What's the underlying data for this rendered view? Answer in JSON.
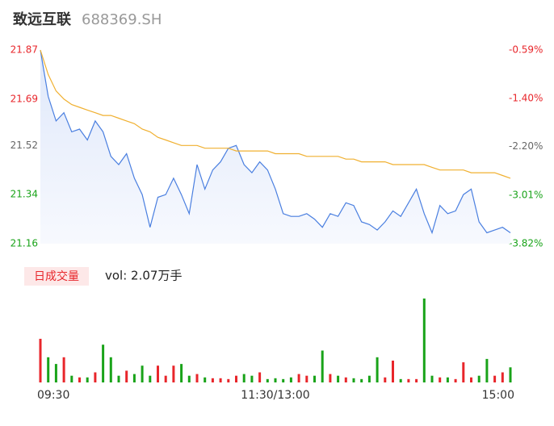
{
  "chart_data": [
    {
      "type": "line",
      "title": "致远互联",
      "subtitle": "688369.SH",
      "x": [
        0,
        4,
        8,
        12,
        16,
        20,
        24,
        28,
        32,
        36,
        40,
        44,
        48,
        52,
        56,
        60,
        64,
        68,
        72,
        76,
        80,
        84,
        88,
        92,
        96,
        100,
        104,
        108,
        112,
        116,
        120,
        124,
        128,
        132,
        136,
        140,
        144,
        148,
        152,
        156,
        160,
        164,
        168,
        172,
        176,
        180,
        184,
        188,
        192,
        196,
        200,
        204,
        208,
        212,
        216,
        220,
        224,
        228,
        232,
        236,
        240
      ],
      "xlim": [
        0,
        240
      ],
      "ylim": [
        21.16,
        21.87
      ],
      "yticks": [
        21.16,
        21.34,
        21.52,
        21.69,
        21.87
      ],
      "ytick_colors": [
        "#19a319",
        "#19a319",
        "#666666",
        "#e8262b",
        "#e8262b"
      ],
      "y2lim": [
        -3.82,
        -0.59
      ],
      "y2ticks": [
        {
          "value": -3.82,
          "label": "-3.82%"
        },
        {
          "value": -3.01,
          "label": "-3.01%"
        },
        {
          "value": -2.2,
          "label": "-2.20%"
        },
        {
          "value": -1.4,
          "label": "-1.40%"
        },
        {
          "value": -0.59,
          "label": "-0.59%"
        }
      ],
      "series": [
        {
          "color": "#4a7fe0",
          "fill": true,
          "values": [
            21.87,
            21.7,
            21.61,
            21.64,
            21.57,
            21.58,
            21.54,
            21.61,
            21.57,
            21.48,
            21.45,
            21.49,
            21.4,
            21.34,
            21.22,
            21.33,
            21.34,
            21.4,
            21.34,
            21.27,
            21.45,
            21.36,
            21.43,
            21.46,
            21.51,
            21.52,
            21.45,
            21.42,
            21.46,
            21.43,
            21.36,
            21.27,
            21.26,
            21.26,
            21.27,
            21.25,
            21.22,
            21.27,
            21.26,
            21.31,
            21.3,
            21.24,
            21.23,
            21.21,
            21.24,
            21.28,
            21.26,
            21.31,
            21.36,
            21.27,
            21.2,
            21.3,
            21.27,
            21.28,
            21.34,
            21.36,
            21.24,
            21.2,
            21.21,
            21.22,
            21.2
          ]
        },
        {
          "color": "#f0b030",
          "fill": false,
          "values": [
            21.87,
            21.78,
            21.72,
            21.69,
            21.67,
            21.66,
            21.65,
            21.64,
            21.63,
            21.63,
            21.62,
            21.61,
            21.6,
            21.58,
            21.57,
            21.55,
            21.54,
            21.53,
            21.52,
            21.52,
            21.52,
            21.51,
            21.51,
            21.51,
            21.51,
            21.5,
            21.5,
            21.5,
            21.5,
            21.5,
            21.49,
            21.49,
            21.49,
            21.49,
            21.48,
            21.48,
            21.48,
            21.48,
            21.48,
            21.47,
            21.47,
            21.46,
            21.46,
            21.46,
            21.46,
            21.45,
            21.45,
            21.45,
            21.45,
            21.45,
            21.44,
            21.43,
            21.43,
            21.43,
            21.43,
            21.42,
            21.42,
            21.42,
            21.42,
            21.41,
            21.4
          ]
        }
      ]
    },
    {
      "type": "bar",
      "title": "日成交量",
      "subtitle": "vol: 2.07万手",
      "ylim": [
        0,
        100
      ],
      "up_color": "#e8262b",
      "down_color": "#19a319",
      "xticks": [
        {
          "value": 0,
          "label": "09:30"
        },
        {
          "value": 120,
          "label": "11:30/13:00"
        },
        {
          "value": 240,
          "label": "15:00"
        }
      ],
      "values": [
        52,
        30,
        22,
        30,
        8,
        6,
        6,
        12,
        45,
        30,
        8,
        14,
        10,
        20,
        8,
        20,
        8,
        20,
        22,
        8,
        10,
        6,
        5,
        5,
        4,
        8,
        10,
        8,
        12,
        4,
        5,
        4,
        6,
        10,
        8,
        8,
        38,
        10,
        8,
        6,
        5,
        4,
        8,
        30,
        6,
        26,
        4,
        4,
        4,
        100,
        8,
        6,
        6,
        4,
        24,
        6,
        8,
        28,
        8,
        12,
        18
      ]
    }
  ]
}
